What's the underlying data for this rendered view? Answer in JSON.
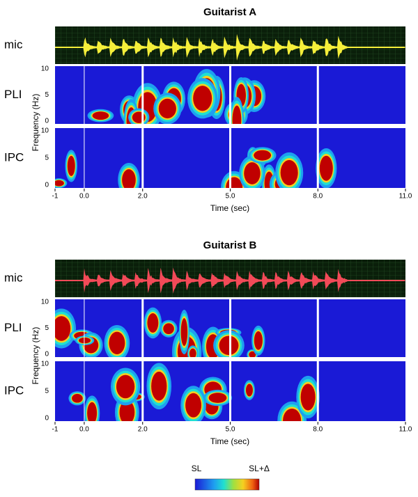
{
  "chart_data": [
    {
      "type": "spectrogram",
      "title": "Guitarist A",
      "rows": [
        "mic",
        "PLI",
        "IPC"
      ],
      "ylabel": "Frequency (Hz)",
      "xlabel": "Time (sec)",
      "xlim": [
        -1,
        11
      ],
      "xticks": [
        -1,
        {
          "value": 0,
          "label": "0.0"
        },
        {
          "value": 2,
          "label": "2.0"
        },
        {
          "value": 5,
          "label": "5.0"
        },
        {
          "value": 8,
          "label": "8.0"
        },
        {
          "value": 11,
          "label": "11.0"
        }
      ],
      "ylim": [
        0,
        10
      ],
      "yticks": [
        0,
        5,
        10
      ],
      "waveform_color": "#f5ef3a"
    },
    {
      "type": "spectrogram",
      "title": "Guitarist B",
      "rows": [
        "mic",
        "PLI",
        "IPC"
      ],
      "ylabel": "Frequency (Hz)",
      "xlabel": "Time (sec)",
      "xlim": [
        -1,
        11
      ],
      "xticks": [
        -1,
        {
          "value": 0,
          "label": "0.0"
        },
        {
          "value": 2,
          "label": "2.0"
        },
        {
          "value": 5,
          "label": "5.0"
        },
        {
          "value": 8,
          "label": "8.0"
        },
        {
          "value": 11,
          "label": "11.0"
        }
      ],
      "ylim": [
        0,
        10
      ],
      "yticks": [
        0,
        5,
        10
      ],
      "waveform_color": "#f24a58"
    }
  ],
  "colorbar": {
    "min_label": "SL",
    "max_label": "SL+Δ"
  }
}
